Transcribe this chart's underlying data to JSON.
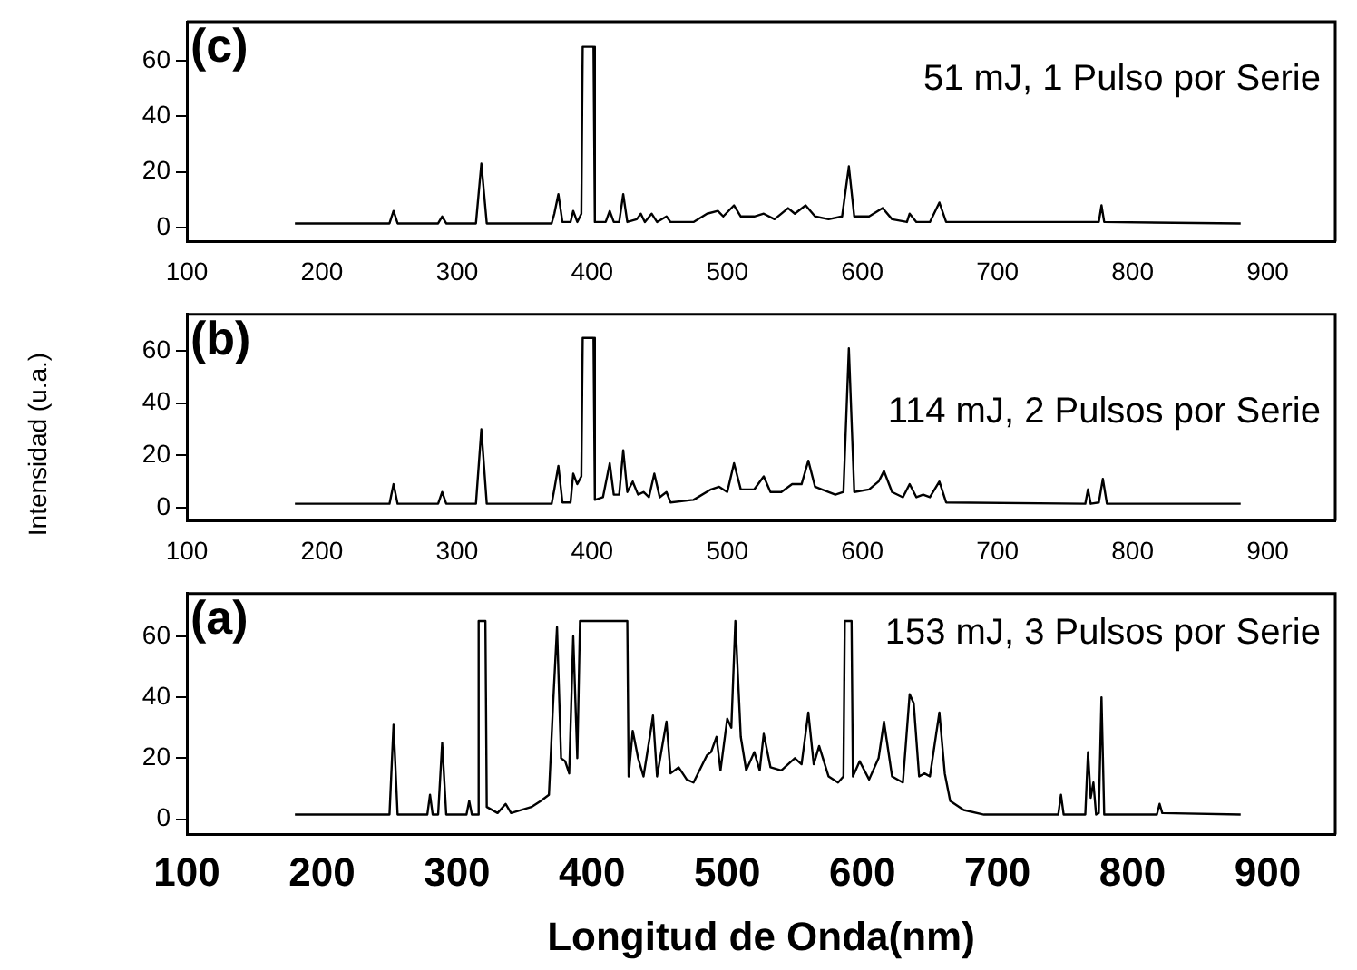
{
  "chart_data": [
    {
      "type": "line",
      "title": "(c)",
      "annotations": [
        "51 mJ, 1 Pulso por Serie"
      ],
      "xlim": [
        100,
        950
      ],
      "xticks": [
        100,
        200,
        300,
        400,
        500,
        600,
        700,
        800,
        900
      ],
      "ylim": [
        -5,
        74
      ],
      "yticks": [
        0,
        20,
        40,
        60
      ],
      "grid": false,
      "legend": false,
      "marker": "none",
      "line_style": "solid",
      "series": [
        {
          "color": "#000000",
          "x": [
            180,
            250,
            253,
            256,
            286,
            289,
            292,
            314,
            318,
            322,
            370,
            372,
            375,
            378,
            384,
            386,
            389,
            392,
            393,
            401,
            402,
            410,
            413,
            416,
            420,
            423,
            426,
            433,
            436,
            439,
            444,
            448,
            455,
            458,
            475,
            485,
            493,
            497,
            505,
            510,
            520,
            527,
            535,
            545,
            550,
            558,
            565,
            575,
            585,
            590,
            594,
            605,
            615,
            622,
            633,
            635,
            640,
            650,
            657,
            662,
            775,
            777,
            779,
            880
          ],
          "values": [
            1.5,
            1.5,
            6,
            1.5,
            1.5,
            4,
            1.5,
            1.5,
            23,
            1.5,
            1.5,
            5,
            12,
            2,
            2,
            6,
            2,
            5,
            65,
            65,
            2,
            2,
            6,
            2,
            2,
            12,
            2,
            3,
            5,
            2,
            5,
            2,
            4,
            2,
            2,
            5,
            6,
            4,
            8,
            4,
            4,
            5,
            3,
            7,
            5,
            8,
            4,
            3,
            4,
            22,
            4,
            4,
            7,
            3,
            2,
            5,
            2,
            2,
            9,
            2,
            2,
            8,
            2,
            1.5
          ]
        }
      ]
    },
    {
      "type": "line",
      "title": "(b)",
      "ylabel": "Intensidad (u.a.)",
      "annotations": [
        "114 mJ, 2 Pulsos por Serie"
      ],
      "xlim": [
        100,
        950
      ],
      "xticks": [
        100,
        200,
        300,
        400,
        500,
        600,
        700,
        800,
        900
      ],
      "ylim": [
        -5,
        74
      ],
      "yticks": [
        0,
        20,
        40,
        60
      ],
      "grid": false,
      "legend": false,
      "marker": "none",
      "line_style": "solid",
      "series": [
        {
          "color": "#000000",
          "x": [
            180,
            250,
            253,
            256,
            286,
            289,
            292,
            314,
            318,
            322,
            370,
            372,
            375,
            378,
            384,
            386,
            389,
            392,
            393,
            401,
            402,
            408,
            413,
            416,
            420,
            423,
            426,
            430,
            434,
            438,
            442,
            446,
            450,
            455,
            458,
            475,
            488,
            494,
            500,
            505,
            510,
            520,
            527,
            532,
            540,
            548,
            555,
            560,
            565,
            570,
            580,
            586,
            590,
            594,
            605,
            612,
            616,
            622,
            630,
            635,
            640,
            645,
            650,
            657,
            662,
            765,
            767,
            769,
            775,
            778,
            781,
            880
          ],
          "values": [
            1.5,
            1.5,
            9,
            1.5,
            1.5,
            6,
            1.5,
            1.5,
            30,
            1.5,
            1.5,
            7,
            16,
            2,
            2,
            13,
            9,
            12,
            65,
            65,
            3,
            4,
            17,
            5,
            5,
            22,
            6,
            10,
            5,
            6,
            4,
            13,
            4,
            6,
            2,
            3,
            7,
            8,
            6,
            17,
            7,
            7,
            12,
            6,
            6,
            9,
            9,
            18,
            8,
            7,
            5,
            6,
            61,
            6,
            7,
            10,
            14,
            6,
            4,
            9,
            4,
            5,
            4,
            10,
            2,
            1.5,
            7,
            1.5,
            2,
            11,
            1.5,
            1.5
          ]
        }
      ]
    },
    {
      "type": "line",
      "title": "(a)",
      "xlabel": "Longitud de Onda(nm)",
      "annotations": [
        "153 mJ, 3 Pulsos por Serie"
      ],
      "xlim": [
        100,
        950
      ],
      "xticks": [
        100,
        200,
        300,
        400,
        500,
        600,
        700,
        800,
        900
      ],
      "ylim": [
        -5,
        74
      ],
      "yticks": [
        0,
        20,
        40,
        60
      ],
      "grid": false,
      "legend": false,
      "marker": "none",
      "line_style": "solid",
      "series": [
        {
          "color": "#000000",
          "x": [
            180,
            250,
            253,
            256,
            278,
            280,
            282,
            286,
            289,
            292,
            307,
            309,
            311,
            315,
            316,
            321,
            322,
            330,
            336,
            340,
            355,
            362,
            368,
            371,
            374,
            377,
            380,
            383,
            386,
            389,
            391,
            426,
            427,
            430,
            434,
            438,
            443,
            445,
            448,
            455,
            458,
            464,
            470,
            475,
            485,
            488,
            492,
            495,
            500,
            503,
            506,
            510,
            514,
            520,
            524,
            527,
            532,
            540,
            550,
            555,
            560,
            564,
            568,
            575,
            582,
            586,
            587,
            592,
            593,
            598,
            605,
            612,
            616,
            622,
            630,
            635,
            638,
            642,
            646,
            650,
            657,
            661,
            665,
            675,
            690,
            745,
            747,
            749,
            765,
            767,
            769,
            771,
            773,
            775,
            777,
            779,
            818,
            820,
            822,
            880
          ],
          "values": [
            1.5,
            1.5,
            31,
            1.5,
            1.5,
            8,
            1.5,
            1.5,
            25,
            1.5,
            1.5,
            6,
            1.5,
            1.5,
            65,
            65,
            4,
            2,
            5,
            2,
            4,
            6,
            8,
            37,
            63,
            20,
            19,
            15,
            60,
            20,
            65,
            65,
            14,
            29,
            20,
            14,
            28,
            34,
            14,
            32,
            15,
            17,
            13,
            12,
            21,
            22,
            27,
            16,
            33,
            30,
            65,
            27,
            16,
            22,
            16,
            28,
            17,
            16,
            20,
            18,
            35,
            18,
            24,
            14,
            12,
            14,
            65,
            65,
            14,
            19,
            13,
            20,
            32,
            14,
            12,
            41,
            38,
            14,
            15,
            14,
            35,
            15,
            6,
            3,
            1.5,
            1.5,
            8,
            1.5,
            1.5,
            22,
            7,
            12,
            1.5,
            2,
            40,
            1.5,
            1.5,
            5,
            2,
            1.5
          ]
        }
      ]
    }
  ]
}
